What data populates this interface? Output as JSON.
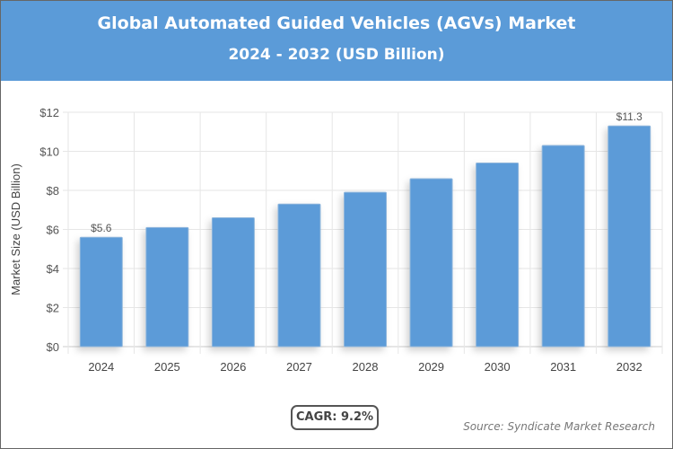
{
  "header": {
    "title": "Global Automated Guided Vehicles (AGVs) Market",
    "subtitle": "2024 - 2032 (USD Billion)"
  },
  "chart_data": {
    "type": "bar",
    "title": "Global Automated Guided Vehicles (AGVs) Market",
    "subtitle": "2024 - 2032 (USD Billion)",
    "categories": [
      "2024",
      "2025",
      "2026",
      "2027",
      "2028",
      "2029",
      "2030",
      "2031",
      "2032"
    ],
    "values": [
      5.6,
      6.1,
      6.6,
      7.3,
      7.9,
      8.6,
      9.4,
      10.3,
      11.3
    ],
    "data_labels": {
      "0": "$5.6",
      "8": "$11.3"
    },
    "xlabel": "",
    "ylabel": "Market Size (USD Billion)",
    "ylim": [
      0,
      12
    ],
    "yticks": [
      "$0",
      "$2",
      "$4",
      "$6",
      "$8",
      "$10",
      "$12"
    ],
    "grid": true,
    "bar_color": "#5b9bd8"
  },
  "footer": {
    "cagr": "CAGR: 9.2%",
    "source": "Source: Syndicate Market Research"
  }
}
